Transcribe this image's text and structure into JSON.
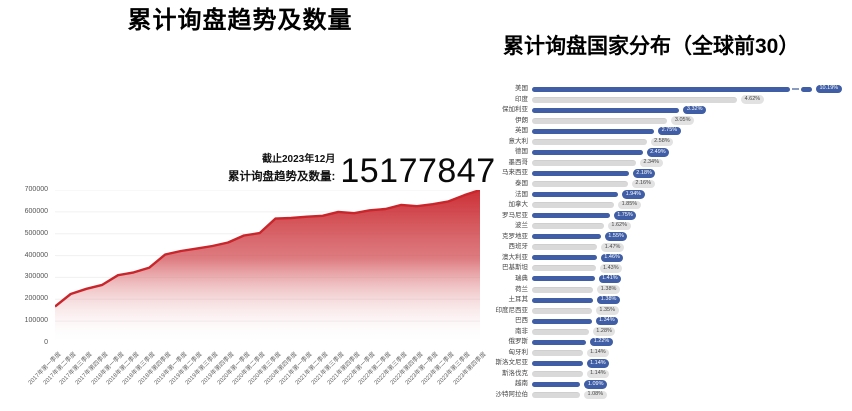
{
  "page": {
    "background": "#ffffff"
  },
  "chart_data": [
    {
      "type": "area",
      "title": "累计询盘趋势及数量",
      "annotation_asof": "截止2023年12月",
      "annotation_label": "累计询盘趋势及数量:",
      "annotation_value": "15177847",
      "line_color": "#c9252b",
      "fill_gradient_top": "#c9252b",
      "fill_gradient_bottom": "#ffffff",
      "grid": true,
      "ylim": [
        0,
        700000
      ],
      "yticks": [
        0,
        100000,
        200000,
        300000,
        400000,
        500000,
        600000,
        700000
      ],
      "x": [
        "2017年第一季度",
        "2017年第二季度",
        "2017年第三季度",
        "2017年第四季度",
        "2018年第一季度",
        "2018年第二季度",
        "2018年第三季度",
        "2018年第四季度",
        "2019年第一季度",
        "2019年第二季度",
        "2019年第三季度",
        "2019年第四季度",
        "2020年第一季度",
        "2020年第二季度",
        "2020年第三季度",
        "2020年第四季度",
        "2021年第一季度",
        "2021年第二季度",
        "2021年第三季度",
        "2021年第四季度",
        "2022年第一季度",
        "2022年第二季度",
        "2022年第三季度",
        "2022年第四季度",
        "2023年第一季度",
        "2023年第二季度",
        "2023年第三季度",
        "2023年第四季度"
      ],
      "values": [
        167000,
        224000,
        248000,
        266000,
        310000,
        323000,
        345000,
        405000,
        421000,
        432000,
        444000,
        460000,
        492000,
        503000,
        569000,
        572000,
        578000,
        582000,
        600000,
        594000,
        607000,
        613000,
        632000,
        626000,
        635000,
        648000,
        676000,
        700000
      ]
    },
    {
      "type": "bar",
      "orientation": "horizontal",
      "title": "累计询盘国家分布（全球前30）",
      "bar_color_odd": "#3f5ea6",
      "bar_color_even": "#d9d9d9",
      "axis_break_category": "美国",
      "categories": [
        "美国",
        "印度",
        "保加利亚",
        "伊朗",
        "英国",
        "意大利",
        "德国",
        "墨西哥",
        "马来西亚",
        "泰国",
        "法国",
        "加拿大",
        "罗马尼亚",
        "波兰",
        "克罗地亚",
        "西班牙",
        "澳大利亚",
        "巴基斯坦",
        "瑞典",
        "荷兰",
        "土耳其",
        "印度尼西亚",
        "巴西",
        "南非",
        "俄罗斯",
        "匈牙利",
        "斯洛文尼亚",
        "斯洛伐克",
        "越南",
        "沙特阿拉伯"
      ],
      "values": [
        10.19,
        4.62,
        3.32,
        3.05,
        2.75,
        2.58,
        2.49,
        2.34,
        2.18,
        2.16,
        1.94,
        1.85,
        1.75,
        1.62,
        1.55,
        1.47,
        1.46,
        1.43,
        1.41,
        1.38,
        1.38,
        1.35,
        1.34,
        1.28,
        1.22,
        1.14,
        1.14,
        1.14,
        1.09,
        1.08
      ],
      "labels": [
        "10.19%",
        "4.62%",
        "3.32%",
        "3.05%",
        "2.75%",
        "2.58%",
        "2.49%",
        "2.34%",
        "2.18%",
        "2.16%",
        "1.94%",
        "1.85%",
        "1.75%",
        "1.62%",
        "1.55%",
        "1.47%",
        "1.46%",
        "1.43%",
        "1.41%",
        "1.38%",
        "1.38%",
        "1.35%",
        "1.34%",
        "1.28%",
        "1.22%",
        "1.14%",
        "1.14%",
        "1.14%",
        "1.09%",
        "1.08%"
      ]
    }
  ]
}
